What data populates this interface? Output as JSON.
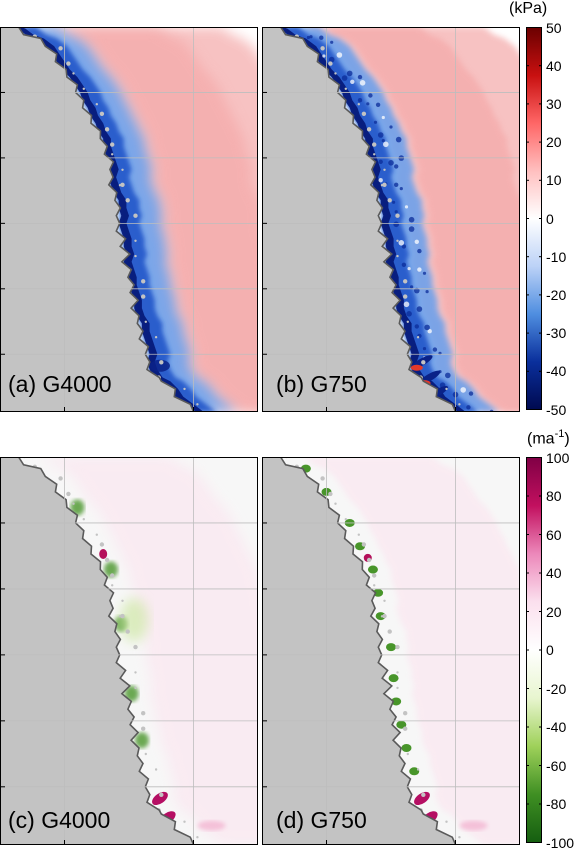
{
  "panels": [
    {
      "id": "a",
      "label": "(a) G4000",
      "field": "stress",
      "res": "coarse"
    },
    {
      "id": "b",
      "label": "(b) G750",
      "field": "stress",
      "res": "fine"
    },
    {
      "id": "c",
      "label": "(c) G4000",
      "field": "rate",
      "res": "coarse"
    },
    {
      "id": "d",
      "label": "(d) G750",
      "field": "rate",
      "res": "fine"
    }
  ],
  "colorbar_top": {
    "unit": "kPa",
    "ticks": [
      "50",
      "40",
      "30",
      "20",
      "10",
      "0",
      "-10",
      "-20",
      "-30",
      "-40",
      "-50"
    ],
    "colors": [
      "#6b0000",
      "#c81010",
      "#ff6666",
      "#ffbfbf",
      "#ffffff",
      "#bcd2f7",
      "#4f8ee0",
      "#0a2f9c",
      "#000a50"
    ]
  },
  "colorbar_bottom": {
    "unit_base": "ma",
    "unit_exp": "-1",
    "ticks": [
      "100",
      "80",
      "60",
      "40",
      "20",
      "0",
      "-20",
      "-40",
      "-60",
      "-80",
      "-100"
    ],
    "colors": [
      "#800045",
      "#c2105f",
      "#ec88ba",
      "#fbe0ee",
      "#ffffff",
      "#e8f5cf",
      "#9fd15a",
      "#3f8f23",
      "#155e10"
    ]
  },
  "map_colors": {
    "land": "#c3c3c3",
    "coast": "#5a5a5a",
    "grid": "#bdbdbd",
    "background": "#f7f7f7"
  }
}
